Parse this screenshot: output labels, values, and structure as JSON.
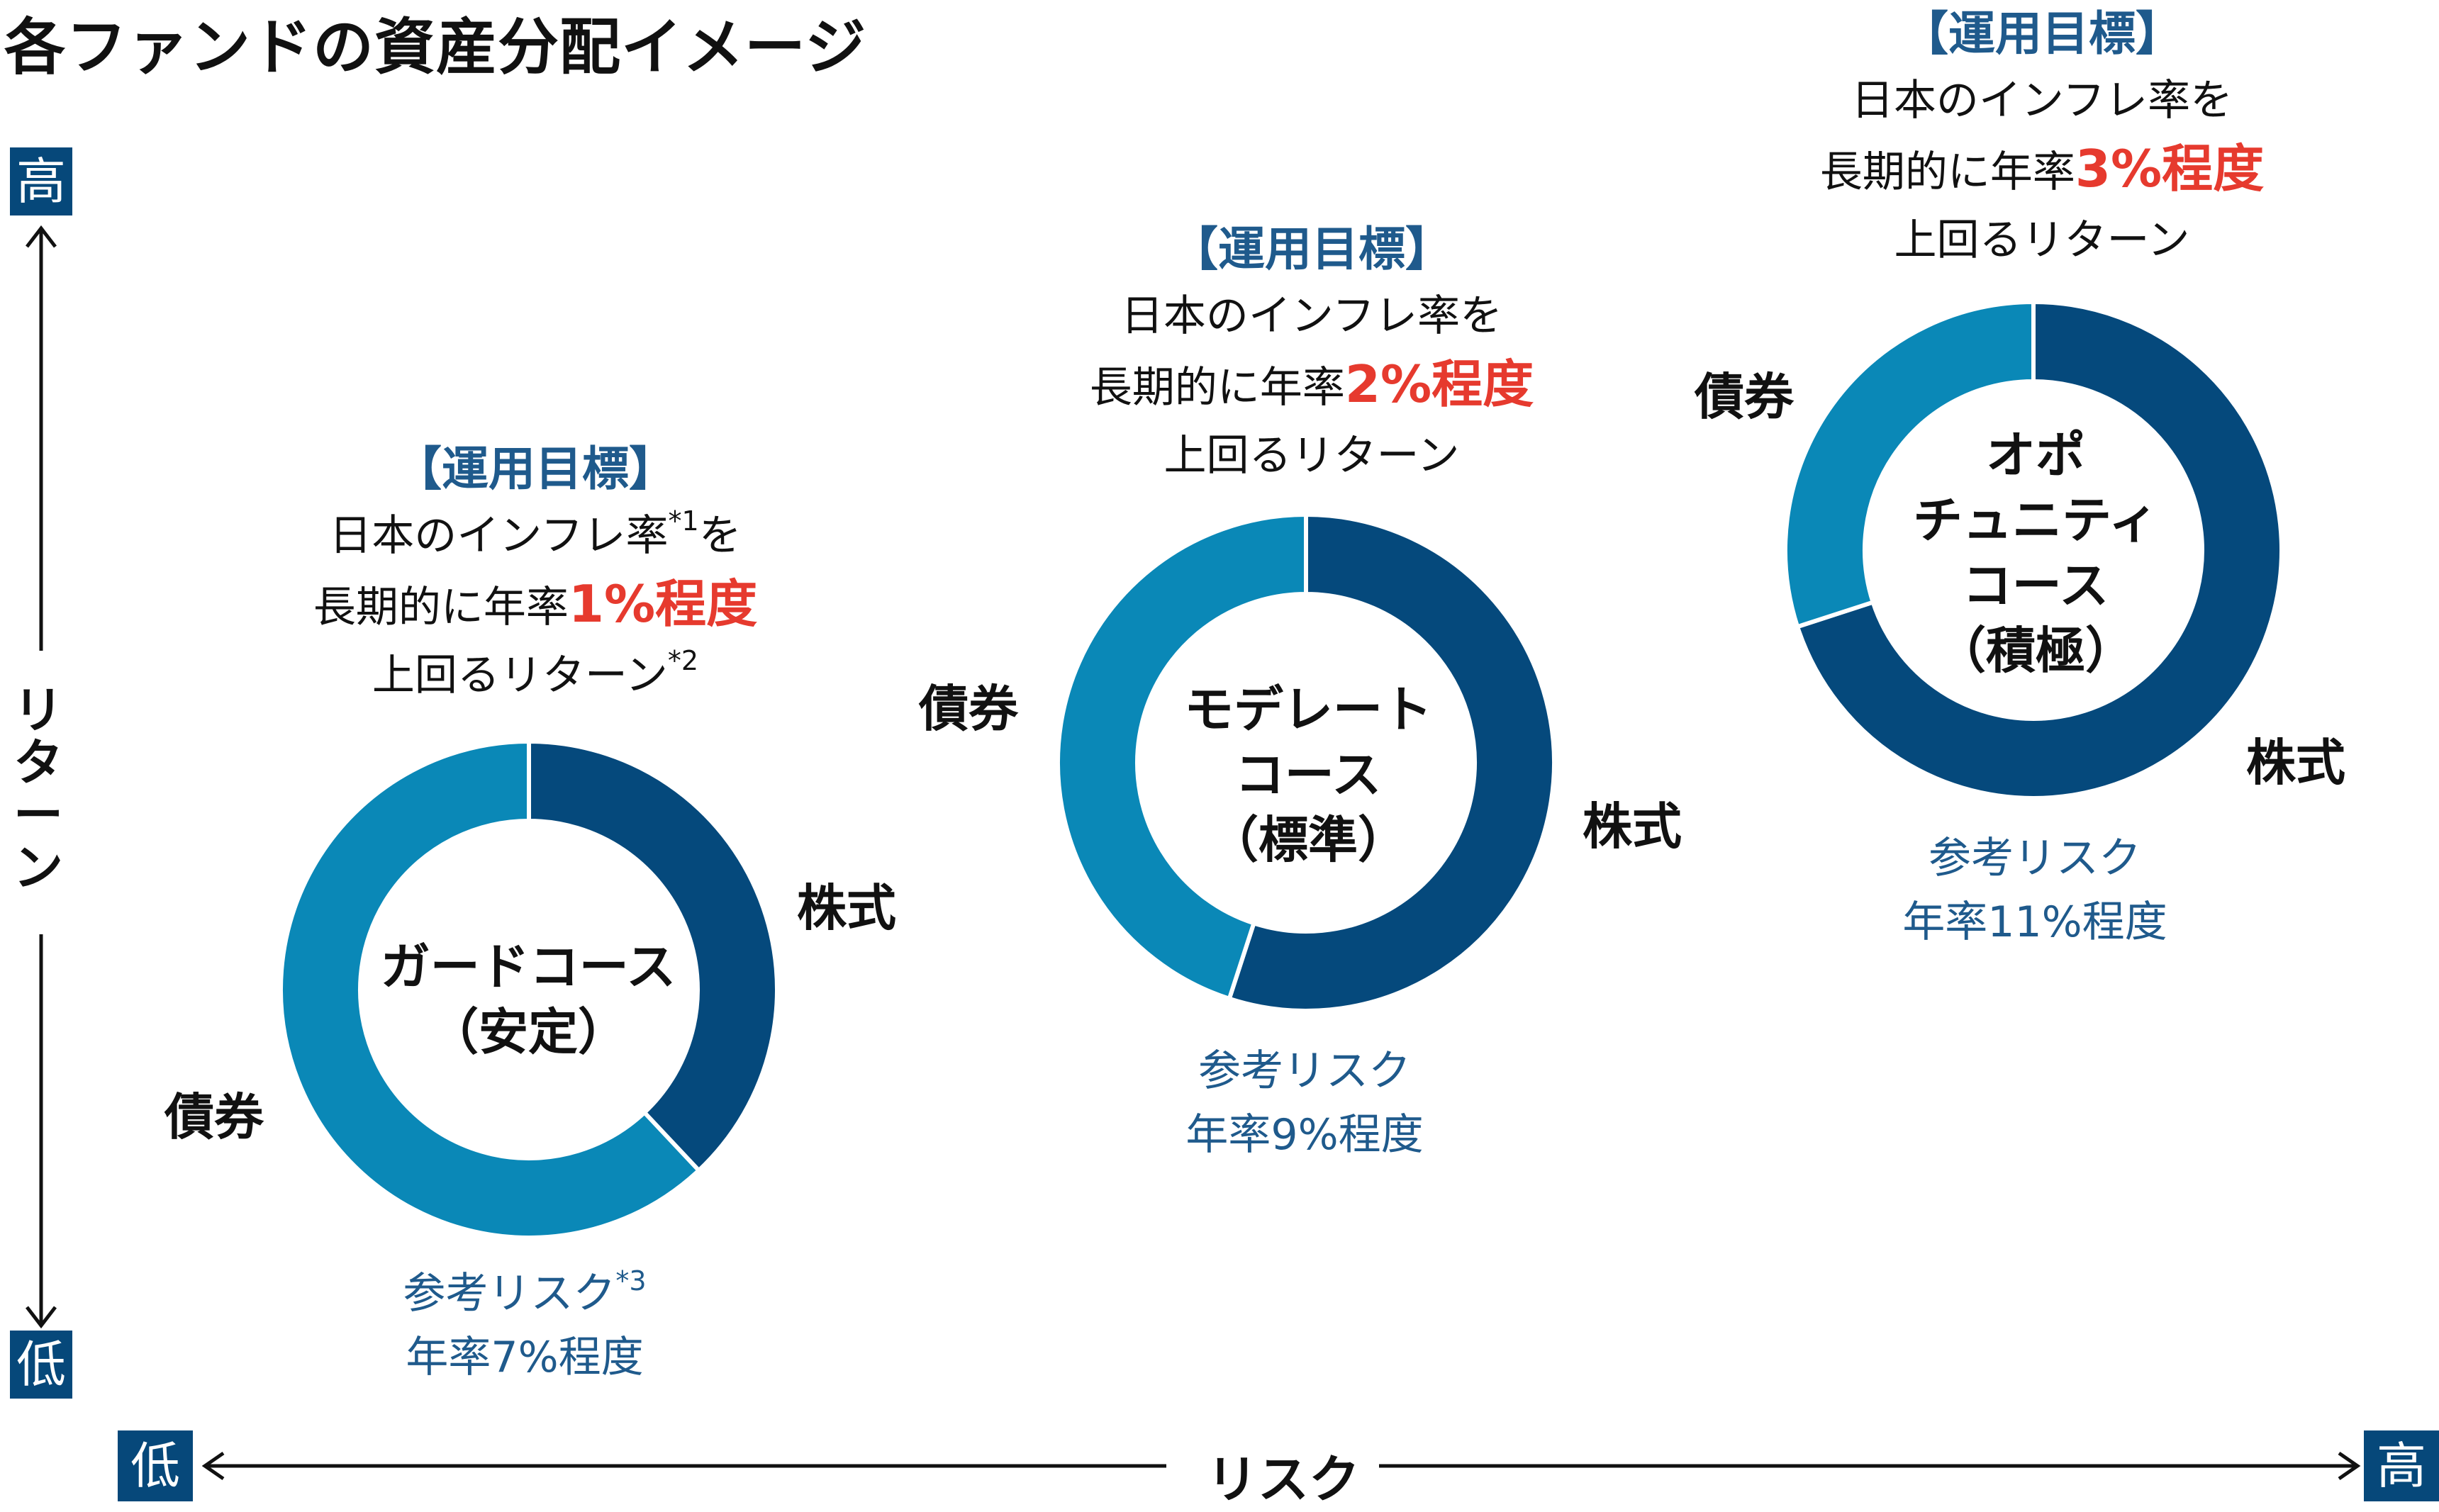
{
  "title": "各ファンドの資産分配イメージ",
  "axes": {
    "return_label": "リターン",
    "risk_label": "リスク",
    "high": "高",
    "low": "低"
  },
  "colors": {
    "stocks": "#05497c",
    "bonds": "#0a88b7",
    "accent": "#e63a2e",
    "label_blue": "#1f5a8c"
  },
  "funds": [
    {
      "name": "ガードコース",
      "sub": "（安定）",
      "goal_head": "【運用目標】",
      "goal_line1": "日本のインフレ率",
      "goal_line1_sup": "*1",
      "goal_line1_tail": "を",
      "goal_line2_pre": "長期的に年率",
      "goal_rate": "1%程度",
      "goal_line3": "上回るリターン",
      "goal_line3_sup": "*2",
      "risk_line1": "参考リスク",
      "risk_line1_sup": "*3",
      "risk_line2": "年率7%程度",
      "stock_label": "株式",
      "bond_label": "債券"
    },
    {
      "name": "モデレート",
      "name2": "コース",
      "sub": "（標準）",
      "goal_head": "【運用目標】",
      "goal_line1": "日本のインフレ率を",
      "goal_line2_pre": "長期的に年率",
      "goal_rate": "2%程度",
      "goal_line3": "上回るリターン",
      "risk_line1": "参考リスク",
      "risk_line2": "年率9%程度",
      "stock_label": "株式",
      "bond_label": "債券"
    },
    {
      "name": "オポ",
      "name2": "チュニティ",
      "name3": "コース",
      "sub": "（積極）",
      "goal_head": "【運用目標】",
      "goal_line1": "日本のインフレ率を",
      "goal_line2_pre": "長期的に年率",
      "goal_rate": "3%程度",
      "goal_line3": "上回るリターン",
      "risk_line1": "参考リスク",
      "risk_line2": "年率11%程度",
      "stock_label": "株式",
      "bond_label": "債券"
    }
  ],
  "chart_data": [
    {
      "type": "pie",
      "title": "ガードコース（安定）",
      "categories": [
        "株式",
        "債券"
      ],
      "values": [
        38,
        62
      ]
    },
    {
      "type": "pie",
      "title": "モデレートコース（標準）",
      "categories": [
        "株式",
        "債券"
      ],
      "values": [
        55,
        45
      ]
    },
    {
      "type": "pie",
      "title": "オポチュニティコース（積極）",
      "categories": [
        "株式",
        "債券"
      ],
      "values": [
        70,
        30
      ]
    }
  ]
}
